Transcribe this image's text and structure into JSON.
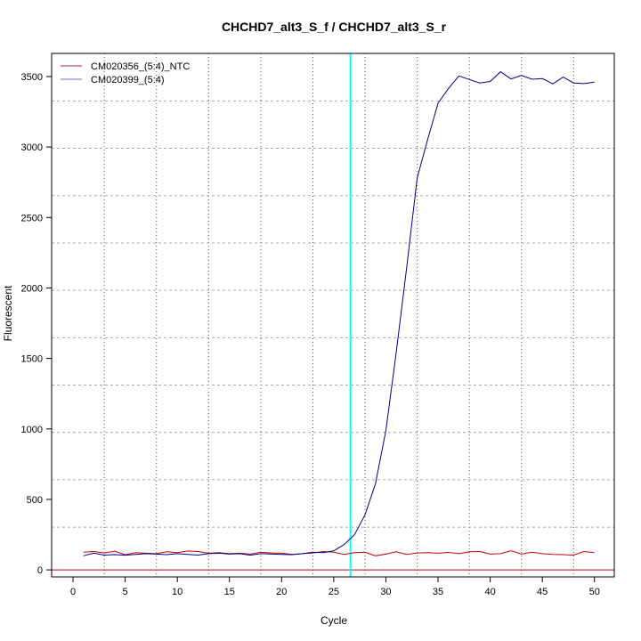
{
  "chart_data": {
    "type": "line",
    "title": "CHCHD7_alt3_S_f / CHCHD7_alt3_S_r",
    "xlabel": "Cycle",
    "ylabel": "Fluorescent",
    "xlim": [
      -2.05,
      51.9
    ],
    "ylim": [
      -50,
      3664
    ],
    "xticks": [
      0,
      5,
      10,
      15,
      20,
      25,
      30,
      35,
      40,
      45,
      50
    ],
    "yticks": [
      0,
      500,
      1000,
      1500,
      2000,
      2500,
      3000,
      3500
    ],
    "grid": true,
    "legend_position": "top-left",
    "threshold_cycle": 26.6,
    "baseline_value": 0,
    "colors": {
      "threshold_line": "#00ffff",
      "baseline": "#cc0000"
    },
    "x": [
      1,
      2,
      3,
      4,
      5,
      6,
      7,
      8,
      9,
      10,
      11,
      12,
      13,
      14,
      15,
      16,
      17,
      18,
      19,
      20,
      21,
      22,
      23,
      24,
      25,
      26,
      27,
      28,
      29,
      30,
      31,
      32,
      33,
      34,
      35,
      36,
      37,
      38,
      39,
      40,
      41,
      42,
      43,
      44,
      45,
      46,
      47,
      48,
      49,
      50
    ],
    "series": [
      {
        "name": "CM020356_(5:4)_NTC",
        "color": "#cc0000",
        "legend_color": "#b22222",
        "values": [
          125,
          130,
          120,
          132,
          108,
          122,
          118,
          115,
          128,
          122,
          134,
          130,
          118,
          122,
          115,
          118,
          112,
          125,
          120,
          118,
          110,
          115,
          120,
          130,
          125,
          110,
          122,
          125,
          100,
          112,
          128,
          110,
          120,
          122,
          118,
          124,
          115,
          128,
          130,
          112,
          115,
          135,
          112,
          125,
          115,
          110,
          108,
          105,
          130,
          122
        ]
      },
      {
        "name": "CM020399_(5:4)",
        "color": "#00008b",
        "legend_color": "#6b6bd6",
        "values": [
          100,
          118,
          105,
          108,
          104,
          110,
          115,
          112,
          108,
          115,
          110,
          105,
          115,
          118,
          112,
          115,
          104,
          115,
          113,
          110,
          108,
          115,
          125,
          122,
          135,
          180,
          250,
          390,
          610,
          990,
          1550,
          2150,
          2780,
          3052,
          3310,
          3415,
          3504,
          3479,
          3454,
          3465,
          3533,
          3483,
          3508,
          3481,
          3485,
          3448,
          3496,
          3454,
          3450,
          3460
        ]
      }
    ]
  }
}
